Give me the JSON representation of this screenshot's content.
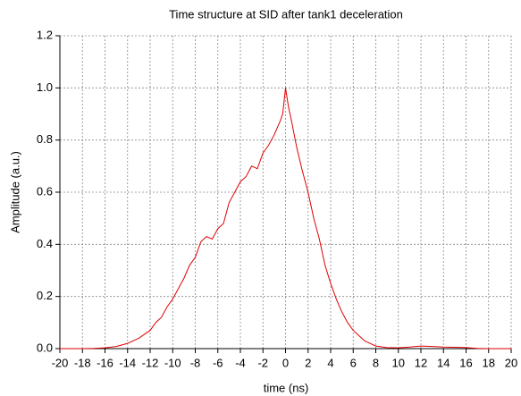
{
  "chart_data": {
    "type": "line",
    "title": "Time structure at SID after tank1 deceleration",
    "xlabel": "time (ns)",
    "ylabel": "Amplitude (a.u.)",
    "x": [
      -20,
      -19,
      -18,
      -17,
      -16,
      -15,
      -14,
      -13,
      -12.5,
      -12,
      -11.5,
      -11,
      -10.5,
      -10,
      -9.5,
      -9,
      -8.5,
      -8,
      -7.5,
      -7,
      -6.5,
      -6,
      -5.5,
      -5,
      -4.5,
      -4,
      -3.5,
      -3,
      -2.5,
      -2,
      -1.5,
      -1,
      -0.5,
      -0.25,
      0,
      0.25,
      0.5,
      1,
      1.5,
      2,
      2.5,
      3,
      3.5,
      4,
      4.5,
      5,
      5.5,
      6,
      6.5,
      7,
      7.5,
      8,
      9,
      10,
      11,
      12,
      13,
      14,
      15,
      16,
      17,
      18,
      19,
      20
    ],
    "series": [
      {
        "name": "Amplitude",
        "color": "#e00000",
        "values": [
          0,
          0,
          0,
          0.001,
          0.003,
          0.008,
          0.02,
          0.04,
          0.055,
          0.07,
          0.1,
          0.12,
          0.16,
          0.19,
          0.23,
          0.27,
          0.32,
          0.35,
          0.41,
          0.43,
          0.42,
          0.46,
          0.48,
          0.56,
          0.6,
          0.64,
          0.66,
          0.7,
          0.69,
          0.75,
          0.78,
          0.82,
          0.87,
          0.9,
          1.0,
          0.93,
          0.88,
          0.77,
          0.68,
          0.6,
          0.5,
          0.42,
          0.32,
          0.25,
          0.19,
          0.14,
          0.1,
          0.07,
          0.05,
          0.03,
          0.02,
          0.01,
          0.004,
          0.003,
          0.006,
          0.01,
          0.008,
          0.006,
          0.005,
          0.004,
          0.001,
          0,
          0,
          0
        ]
      }
    ],
    "xlim": [
      -20,
      20
    ],
    "xticks": [
      -20,
      -18,
      -16,
      -14,
      -12,
      -10,
      -8,
      -6,
      -4,
      -2,
      0,
      2,
      4,
      6,
      8,
      10,
      12,
      14,
      16,
      18,
      20
    ],
    "ylim": [
      0,
      1.2
    ],
    "yticks": [
      {
        "value": 0,
        "label": "0.0"
      },
      0.2,
      0.4,
      0.6,
      0.8,
      {
        "value": 1,
        "label": "1.0"
      },
      1.2
    ],
    "grid": true
  }
}
